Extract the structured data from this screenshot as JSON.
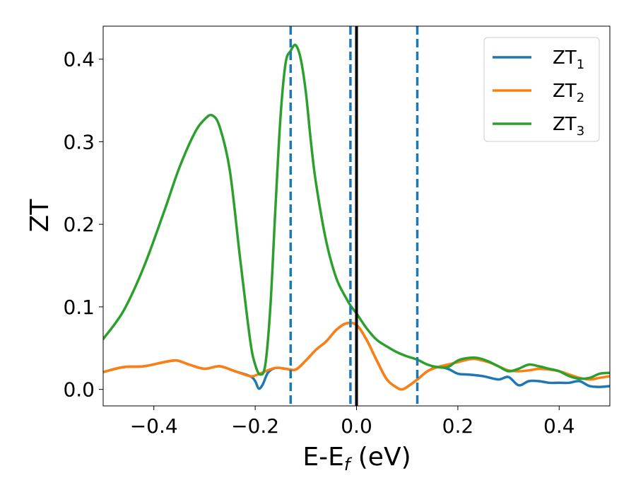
{
  "chart_data": {
    "type": "line",
    "xlabel": "E-E",
    "xlabel_sub": "f",
    "xlabel_unit": " (eV)",
    "ylabel": "ZT",
    "xlim": [
      -0.5,
      0.5
    ],
    "ylim": [
      -0.02,
      0.44
    ],
    "grid": false,
    "legend_position": "top-right",
    "x_ticks": [
      -0.4,
      -0.2,
      0.0,
      0.2,
      0.4
    ],
    "x_tick_labels": [
      "−0.4",
      "−0.2",
      "0.0",
      "0.2",
      "0.4"
    ],
    "y_ticks": [
      0.0,
      0.1,
      0.2,
      0.3,
      0.4
    ],
    "y_tick_labels": [
      "0.0",
      "0.1",
      "0.2",
      "0.3",
      "0.4"
    ],
    "vertical_lines": [
      {
        "x": -0.13,
        "style": "dashed",
        "color": "#1f77b4"
      },
      {
        "x": -0.012,
        "style": "dashed",
        "color": "#1f77b4"
      },
      {
        "x": 0.0,
        "style": "solid",
        "color": "#000000"
      },
      {
        "x": 0.12,
        "style": "dashed",
        "color": "#1f77b4"
      }
    ],
    "series": [
      {
        "name": "ZT",
        "name_sub": "1",
        "color": "#1f77b4",
        "x": [
          -0.5,
          -0.46,
          -0.42,
          -0.38,
          -0.355,
          -0.33,
          -0.3,
          -0.27,
          -0.24,
          -0.21,
          -0.2,
          -0.193,
          -0.185,
          -0.175,
          -0.16,
          -0.14,
          -0.12,
          -0.1,
          -0.08,
          -0.06,
          -0.04,
          -0.02,
          0.0,
          0.02,
          0.04,
          0.06,
          0.08,
          0.09,
          0.1,
          0.12,
          0.14,
          0.16,
          0.18,
          0.2,
          0.22,
          0.25,
          0.28,
          0.3,
          0.32,
          0.34,
          0.36,
          0.38,
          0.4,
          0.42,
          0.44,
          0.46,
          0.48,
          0.5
        ],
        "y": [
          0.021,
          0.027,
          0.028,
          0.033,
          0.035,
          0.03,
          0.025,
          0.028,
          0.022,
          0.016,
          0.01,
          0.001,
          0.006,
          0.02,
          0.026,
          0.025,
          0.024,
          0.035,
          0.048,
          0.058,
          0.072,
          0.08,
          0.078,
          0.06,
          0.035,
          0.012,
          0.002,
          0.0,
          0.003,
          0.012,
          0.022,
          0.027,
          0.025,
          0.019,
          0.018,
          0.016,
          0.012,
          0.015,
          0.005,
          0.01,
          0.01,
          0.008,
          0.008,
          0.008,
          0.01,
          0.004,
          0.003,
          0.004
        ]
      },
      {
        "name": "ZT",
        "name_sub": "2",
        "color": "#ff7f0e",
        "x": [
          -0.5,
          -0.46,
          -0.42,
          -0.38,
          -0.355,
          -0.33,
          -0.3,
          -0.27,
          -0.24,
          -0.21,
          -0.195,
          -0.18,
          -0.16,
          -0.14,
          -0.12,
          -0.1,
          -0.08,
          -0.06,
          -0.04,
          -0.02,
          0.0,
          0.02,
          0.04,
          0.06,
          0.08,
          0.09,
          0.1,
          0.12,
          0.14,
          0.16,
          0.18,
          0.2,
          0.23,
          0.26,
          0.28,
          0.3,
          0.32,
          0.34,
          0.36,
          0.38,
          0.4,
          0.42,
          0.44,
          0.46,
          0.48,
          0.5
        ],
        "y": [
          0.021,
          0.027,
          0.028,
          0.033,
          0.035,
          0.03,
          0.025,
          0.028,
          0.022,
          0.016,
          0.018,
          0.022,
          0.026,
          0.025,
          0.024,
          0.035,
          0.048,
          0.058,
          0.072,
          0.08,
          0.078,
          0.06,
          0.035,
          0.012,
          0.002,
          0.0,
          0.003,
          0.012,
          0.022,
          0.027,
          0.03,
          0.033,
          0.037,
          0.033,
          0.028,
          0.023,
          0.022,
          0.023,
          0.025,
          0.024,
          0.022,
          0.018,
          0.014,
          0.012,
          0.014,
          0.016
        ]
      },
      {
        "name": "ZT",
        "name_sub": "3",
        "color": "#2ca02c",
        "x": [
          -0.5,
          -0.46,
          -0.42,
          -0.38,
          -0.35,
          -0.32,
          -0.3,
          -0.285,
          -0.27,
          -0.25,
          -0.23,
          -0.21,
          -0.2,
          -0.19,
          -0.18,
          -0.17,
          -0.16,
          -0.15,
          -0.14,
          -0.13,
          -0.12,
          -0.11,
          -0.1,
          -0.09,
          -0.08,
          -0.06,
          -0.04,
          -0.02,
          -0.01,
          0.0,
          0.02,
          0.04,
          0.06,
          0.08,
          0.1,
          0.12,
          0.14,
          0.16,
          0.18,
          0.2,
          0.22,
          0.24,
          0.26,
          0.28,
          0.3,
          0.32,
          0.34,
          0.36,
          0.38,
          0.4,
          0.42,
          0.44,
          0.46,
          0.48,
          0.5
        ],
        "y": [
          0.061,
          0.095,
          0.148,
          0.215,
          0.268,
          0.31,
          0.327,
          0.332,
          0.318,
          0.265,
          0.16,
          0.06,
          0.03,
          0.018,
          0.03,
          0.1,
          0.22,
          0.33,
          0.395,
          0.41,
          0.417,
          0.4,
          0.36,
          0.3,
          0.25,
          0.18,
          0.135,
          0.11,
          0.1,
          0.092,
          0.074,
          0.06,
          0.052,
          0.045,
          0.04,
          0.036,
          0.03,
          0.027,
          0.027,
          0.035,
          0.038,
          0.038,
          0.034,
          0.028,
          0.022,
          0.025,
          0.03,
          0.028,
          0.025,
          0.022,
          0.016,
          0.013,
          0.014,
          0.019,
          0.02
        ]
      }
    ]
  }
}
